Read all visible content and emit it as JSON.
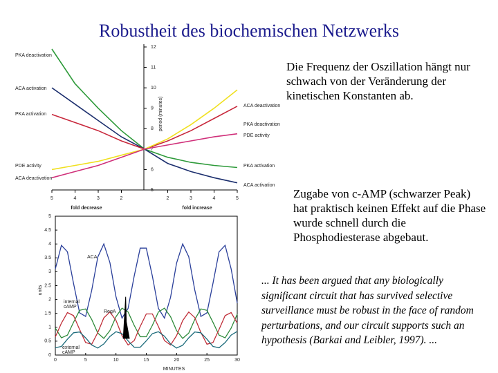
{
  "slide": {
    "title": "Robustheit des biochemischen Netzwerks",
    "text1": "Die Frequenz der Oszillation hängt nur schwach von der Veränderung der kinetischen Konstanten ab.",
    "text2": "Zugabe von c-AMP (schwarzer Peak) hat praktisch keinen Effekt auf die Phase wurde schnell durch die Phosphodiesterase abgebaut.",
    "quote": "... It has been argued that any biologically significant circuit that has survived selective surveillance must be robust in the face of random perturbations, and our circuit supports such an hypothesis (Barkai and Leibler, 1997). ..."
  },
  "chart_data": [
    {
      "type": "line",
      "x": [
        -4,
        -3,
        -2,
        -1,
        0,
        1,
        2,
        3,
        4
      ],
      "xlim": [
        -4,
        4
      ],
      "xticks": [
        {
          "value": -4,
          "label": "5"
        },
        {
          "value": -3,
          "label": "4"
        },
        {
          "value": -2,
          "label": "3"
        },
        {
          "value": -1,
          "label": "2"
        },
        {
          "value": 1,
          "label": "2"
        },
        {
          "value": 2,
          "label": "3"
        },
        {
          "value": 3,
          "label": "4"
        },
        {
          "value": 4,
          "label": "5"
        }
      ],
      "xlabel_left": "fold decrease",
      "xlabel_right": "fold increase",
      "ylim": [
        5,
        12
      ],
      "yticks": [
        5,
        6,
        7,
        8,
        9,
        10,
        11,
        12
      ],
      "ylabel": "period (minutes)",
      "series": [
        {
          "color": "#2e9a3a",
          "values": [
            11.9,
            10.2,
            9.0,
            7.9,
            7.0,
            6.6,
            6.35,
            6.2,
            6.1
          ]
        },
        {
          "color": "#1c2f6e",
          "values": [
            10.0,
            9.2,
            8.4,
            7.6,
            7.0,
            6.3,
            5.9,
            5.6,
            5.35
          ]
        },
        {
          "color": "#c8283c",
          "values": [
            8.7,
            8.3,
            7.9,
            7.4,
            7.0,
            7.4,
            7.9,
            8.5,
            9.1
          ]
        },
        {
          "color": "#f0e020",
          "values": [
            6.0,
            6.2,
            6.4,
            6.7,
            7.0,
            7.5,
            8.2,
            9.0,
            9.9
          ]
        },
        {
          "color": "#d0307a",
          "values": [
            5.6,
            5.9,
            6.2,
            6.6,
            7.0,
            7.2,
            7.4,
            7.6,
            7.75
          ]
        }
      ],
      "left_labels": [
        "PKA deactivation",
        "ACA activation",
        "PKA activation",
        "PDE activity",
        "ACA deactivation"
      ],
      "right_labels": [
        "ACA deactivation",
        "PKA deactivation",
        "PDE activity",
        "PKA activation",
        "ACA activation"
      ]
    },
    {
      "type": "line",
      "x": [
        0,
        1,
        2,
        3,
        4,
        5,
        6,
        7,
        8,
        9,
        10,
        11,
        12,
        13,
        14,
        15,
        16,
        17,
        18,
        19,
        20,
        21,
        22,
        23,
        24,
        25,
        26,
        27,
        28,
        29,
        30
      ],
      "xlim": [
        0,
        30
      ],
      "xticks": [
        0,
        5,
        10,
        15,
        20,
        25,
        30
      ],
      "xlabel": "MINUTES",
      "ylim": [
        0,
        5
      ],
      "yticks": [
        0,
        0.5,
        1,
        1.5,
        2,
        2.5,
        3,
        3.5,
        4,
        4.5,
        5
      ],
      "ylabel": "units",
      "series": [
        {
          "color": "#2a3f9a",
          "values": [
            3.1,
            3.95,
            3.72,
            2.58,
            1.52,
            1.39,
            2.33,
            3.53,
            4.0,
            3.33,
            2.1,
            1.33,
            1.68,
            2.84,
            3.85,
            3.85,
            2.84,
            1.68,
            1.33,
            2.08,
            3.31,
            4.0,
            3.54,
            2.34,
            1.39,
            1.52,
            2.58,
            3.72,
            3.95,
            3.1,
            1.87
          ]
        },
        {
          "color": "#2e8a3a",
          "values": [
            0.97,
            0.62,
            0.72,
            1.18,
            1.61,
            1.66,
            1.28,
            0.79,
            0.6,
            0.88,
            1.38,
            1.69,
            1.55,
            1.07,
            0.66,
            0.66,
            1.07,
            1.55,
            1.69,
            1.38,
            0.88,
            0.6,
            0.79,
            1.28,
            1.66,
            1.61,
            1.18,
            0.72,
            0.62,
            0.97,
            1.47
          ]
        },
        {
          "color": "#c0303a",
          "values": [
            0.65,
            1.15,
            1.53,
            1.42,
            0.92,
            0.45,
            0.39,
            0.81,
            1.34,
            1.55,
            1.25,
            0.7,
            0.36,
            0.52,
            1.03,
            1.48,
            1.48,
            1.03,
            0.52,
            0.36,
            0.7,
            1.24,
            1.55,
            1.35,
            0.81,
            0.39,
            0.45,
            0.92,
            1.42,
            1.53,
            1.15
          ]
        },
        {
          "color": "#1a6a7a",
          "values": [
            0.26,
            0.31,
            0.57,
            0.8,
            0.83,
            0.62,
            0.36,
            0.25,
            0.4,
            0.67,
            0.84,
            0.77,
            0.51,
            0.28,
            0.28,
            0.51,
            0.77,
            0.84,
            0.68,
            0.4,
            0.25,
            0.35,
            0.62,
            0.83,
            0.8,
            0.57,
            0.31,
            0.26,
            0.45,
            0.72,
            0.85
          ]
        }
      ],
      "pulse": {
        "color": "#000000",
        "x": [
          11.2,
          11.6,
          11.7,
          12.2
        ],
        "values": [
          0.6,
          2.1,
          1.2,
          0.6
        ]
      },
      "annotations": [
        "ACA",
        "internal",
        "cAMP",
        "RegA",
        "external",
        "cAMP"
      ]
    }
  ]
}
